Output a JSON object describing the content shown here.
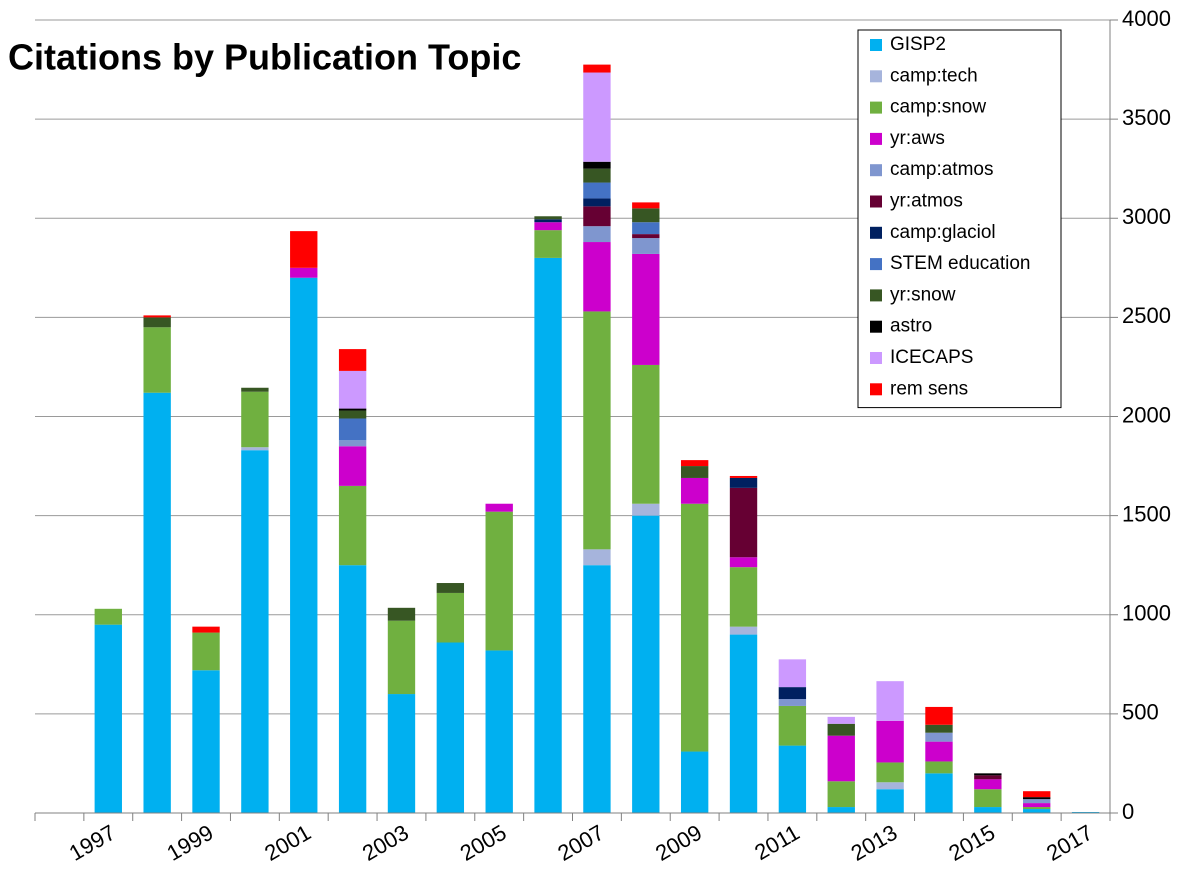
{
  "chart_data": {
    "type": "stacked_bar",
    "title": "Citations by Publication Topic",
    "categories": [
      null,
      "1997",
      null,
      "1999",
      null,
      "2001",
      null,
      "2003",
      null,
      "2005",
      null,
      "2007",
      null,
      "2009",
      null,
      "2011",
      null,
      "2013",
      null,
      "2015",
      null,
      "2017"
    ],
    "series": [
      {
        "name": "GISP2",
        "color": "#00b0f0",
        "values": [
          0,
          950,
          2120,
          720,
          1830,
          2700,
          1250,
          600,
          860,
          820,
          2800,
          1250,
          1500,
          310,
          900,
          340,
          30,
          120,
          200,
          30,
          20,
          5
        ]
      },
      {
        "name": "camp:tech",
        "color": "#a6b4dc",
        "values": [
          0,
          0,
          0,
          0,
          15,
          0,
          0,
          0,
          0,
          0,
          0,
          80,
          60,
          0,
          40,
          0,
          0,
          35,
          0,
          0,
          0,
          0
        ]
      },
      {
        "name": "camp:snow",
        "color": "#70b040",
        "values": [
          0,
          80,
          330,
          190,
          280,
          0,
          400,
          370,
          250,
          700,
          140,
          1200,
          700,
          1250,
          300,
          200,
          130,
          100,
          60,
          90,
          10,
          0
        ]
      },
      {
        "name": "yr:aws",
        "color": "#cc00cc",
        "values": [
          0,
          0,
          0,
          0,
          0,
          50,
          200,
          0,
          0,
          40,
          40,
          350,
          560,
          130,
          50,
          0,
          230,
          210,
          100,
          50,
          20,
          0
        ]
      },
      {
        "name": "camp:atmos",
        "color": "#7f96cf",
        "values": [
          0,
          0,
          0,
          0,
          0,
          0,
          30,
          0,
          0,
          0,
          0,
          80,
          80,
          0,
          0,
          35,
          0,
          0,
          45,
          0,
          20,
          0
        ]
      },
      {
        "name": "yr:atmos",
        "color": "#660033",
        "values": [
          0,
          0,
          0,
          0,
          0,
          0,
          0,
          0,
          0,
          0,
          0,
          100,
          20,
          0,
          350,
          0,
          0,
          0,
          0,
          20,
          0,
          0
        ]
      },
      {
        "name": "camp:glaciol",
        "color": "#002060",
        "values": [
          0,
          0,
          0,
          0,
          0,
          0,
          0,
          0,
          0,
          0,
          15,
          40,
          0,
          0,
          50,
          60,
          0,
          0,
          0,
          0,
          0,
          0
        ]
      },
      {
        "name": "STEM education",
        "color": "#4472c4",
        "values": [
          0,
          0,
          0,
          0,
          0,
          0,
          110,
          0,
          0,
          0,
          0,
          80,
          60,
          0,
          0,
          0,
          0,
          0,
          0,
          0,
          0,
          0
        ]
      },
      {
        "name": "yr:snow",
        "color": "#375623",
        "values": [
          0,
          0,
          50,
          0,
          20,
          0,
          40,
          65,
          50,
          0,
          15,
          70,
          70,
          60,
          0,
          0,
          60,
          0,
          40,
          0,
          0,
          0
        ]
      },
      {
        "name": "astro",
        "color": "#000000",
        "values": [
          0,
          0,
          0,
          0,
          0,
          0,
          10,
          0,
          0,
          0,
          0,
          35,
          0,
          0,
          0,
          0,
          0,
          0,
          0,
          10,
          10,
          0
        ]
      },
      {
        "name": "ICECAPS",
        "color": "#cc99ff",
        "values": [
          0,
          0,
          0,
          0,
          0,
          0,
          190,
          0,
          0,
          0,
          0,
          450,
          0,
          0,
          0,
          140,
          35,
          200,
          0,
          0,
          0,
          0
        ]
      },
      {
        "name": "rem sens",
        "color": "#ff0000",
        "values": [
          0,
          0,
          10,
          30,
          0,
          185,
          110,
          0,
          0,
          0,
          0,
          40,
          30,
          30,
          10,
          0,
          0,
          0,
          90,
          0,
          30,
          0
        ]
      }
    ],
    "ylim": [
      0,
      4000
    ],
    "yticks": [
      0,
      500,
      1000,
      1500,
      2000,
      2500,
      3000,
      3500,
      4000
    ],
    "grid": true,
    "legend": "upper right"
  }
}
